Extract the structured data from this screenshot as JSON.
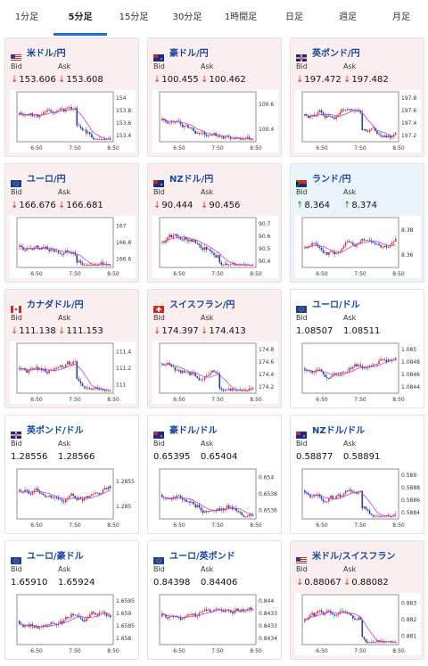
{
  "tabs": [
    "1分足",
    "5分足",
    "15分足",
    "30分足",
    "1時間足",
    "日足",
    "週足",
    "月足"
  ],
  "active_tab": 1,
  "bid_label": "Bid",
  "ask_label": "Ask",
  "colors": {
    "down_bg": "#fbeeee",
    "up_bg": "#eaf4fb",
    "link": "#15479e",
    "candle_up": "#d43a2e",
    "candle_down": "#1f3fa8",
    "ma": "#c23fd8"
  },
  "cards": [
    {
      "pair": "米ドル/円",
      "flag": "us",
      "bid": "153.606",
      "ask": "153.608",
      "dir": "down",
      "ticks": [
        "154",
        "153.8",
        "153.6",
        "153.4"
      ],
      "times": [
        "6:50",
        "7:50",
        "8:50"
      ]
    },
    {
      "pair": "豪ドル/円",
      "flag": "au",
      "bid": "100.455",
      "ask": "100.462",
      "dir": "down",
      "ticks": [
        "100.6",
        "100.4"
      ],
      "times": [
        "6:50",
        "7:50",
        "8:50"
      ]
    },
    {
      "pair": "英ポンド/円",
      "flag": "gb",
      "bid": "197.472",
      "ask": "197.482",
      "dir": "down",
      "ticks": [
        "197.8",
        "197.6",
        "197.4",
        "197.2"
      ],
      "times": [
        "6:50",
        "7:50",
        "8:50"
      ]
    },
    {
      "pair": "ユーロ/円",
      "flag": "eu",
      "bid": "166.676",
      "ask": "166.681",
      "dir": "down",
      "ticks": [
        "167",
        "166.8",
        "166.6"
      ],
      "times": [
        "6:50",
        "7:50",
        "8:50"
      ]
    },
    {
      "pair": "NZドル/円",
      "flag": "nz",
      "bid": "90.444",
      "ask": "90.456",
      "dir": "down",
      "ticks": [
        "90.7",
        "90.6",
        "90.5",
        "90.4"
      ],
      "times": [
        "6:50",
        "7:50",
        "8:50"
      ]
    },
    {
      "pair": "ランド/円",
      "flag": "za",
      "bid": "8.364",
      "ask": "8.374",
      "dir": "up",
      "ticks": [
        "8.38",
        "8.36"
      ],
      "times": [
        "6:50",
        "7:50",
        "8:50"
      ]
    },
    {
      "pair": "カナダドル/円",
      "flag": "ca",
      "bid": "111.138",
      "ask": "111.153",
      "dir": "down",
      "ticks": [
        "111.4",
        "111.2",
        "111"
      ],
      "times": [
        "6:50",
        "7:50",
        "8:50"
      ]
    },
    {
      "pair": "スイスフラン/円",
      "flag": "ch",
      "bid": "174.397",
      "ask": "174.413",
      "dir": "down",
      "ticks": [
        "174.8",
        "174.6",
        "174.4",
        "174.2"
      ],
      "times": [
        "6:50",
        "7:50",
        "8:50"
      ]
    },
    {
      "pair": "ユーロ/ドル",
      "flag": "eu",
      "bid": "1.08507",
      "ask": "1.08511",
      "dir": "none",
      "ticks": [
        "1.085",
        "1.0848",
        "1.0846",
        "1.0844"
      ],
      "times": [
        "6:50",
        "7:50",
        "8:50"
      ]
    },
    {
      "pair": "英ポンド/ドル",
      "flag": "gb",
      "bid": "1.28556",
      "ask": "1.28566",
      "dir": "none",
      "ticks": [
        "1.2855",
        "1.285"
      ],
      "times": [
        "6:50",
        "7:50",
        "8:50"
      ]
    },
    {
      "pair": "豪ドル/ドル",
      "flag": "au",
      "bid": "0.65395",
      "ask": "0.65404",
      "dir": "none",
      "ticks": [
        "0.654",
        "0.6538",
        "0.6536"
      ],
      "times": [
        "6:50",
        "7:50",
        "8:50"
      ]
    },
    {
      "pair": "NZドル/ドル",
      "flag": "nz",
      "bid": "0.58877",
      "ask": "0.58891",
      "dir": "none",
      "ticks": [
        "0.589",
        "0.5888",
        "0.5886",
        "0.5884"
      ],
      "times": [
        "6:50",
        "7:50",
        "8:50"
      ]
    },
    {
      "pair": "ユーロ/豪ドル",
      "flag": "eu",
      "bid": "1.65910",
      "ask": "1.65924",
      "dir": "none",
      "ticks": [
        "1.6595",
        "1.659",
        "1.6585",
        "1.658"
      ],
      "times": [
        "6:50",
        "7:50",
        "8:50"
      ]
    },
    {
      "pair": "ユーロ/英ポンド",
      "flag": "eu",
      "bid": "0.84398",
      "ask": "0.84406",
      "dir": "none",
      "ticks": [
        "0.844",
        "0.8433",
        "0.8433",
        "0.8434"
      ],
      "times": [
        "6:50",
        "7:50",
        "8:50"
      ]
    },
    {
      "pair": "米ドル/スイスフラン",
      "flag": "us",
      "bid": "0.88067",
      "ask": "0.88082",
      "dir": "down",
      "ticks": [
        "0.883",
        "0.882",
        "0.881"
      ],
      "times": [
        "6:50",
        "7:50",
        "8:50"
      ]
    }
  ]
}
